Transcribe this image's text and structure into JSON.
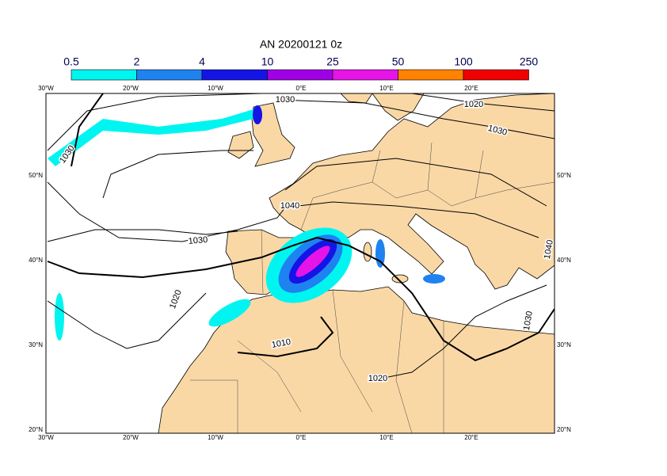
{
  "title": "AN  20200121 0z",
  "colorbar": {
    "levels": [
      0.5,
      2,
      4,
      10,
      25,
      50,
      100,
      250
    ],
    "colors": [
      "#00f5f0",
      "#1e82f0",
      "#1414e6",
      "#a000e6",
      "#e614e6",
      "#ff8200",
      "#f00000"
    ]
  },
  "lon_labels": [
    "30°W",
    "20°W",
    "10°W",
    "0°E",
    "10°E",
    "20°E"
  ],
  "lat_labels": [
    "20°N",
    "30°N",
    "40°N",
    "50°N"
  ],
  "isobar_labels": [
    "1030",
    "1030",
    "1020",
    "1030",
    "1040",
    "1030",
    "1020",
    "1010",
    "1020",
    "1030",
    "1040"
  ]
}
